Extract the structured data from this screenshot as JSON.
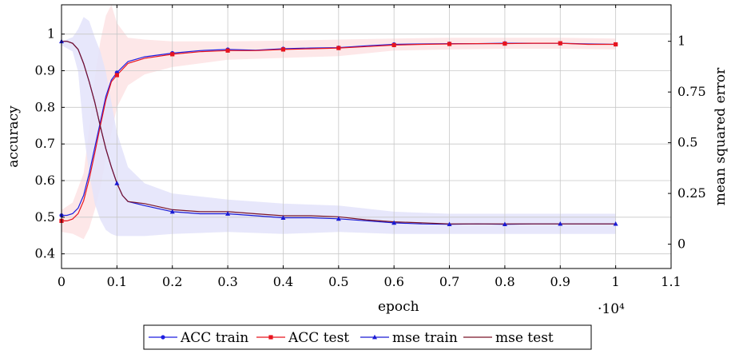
{
  "chart_data": {
    "type": "line",
    "xlabel": "epoch",
    "ylabel": "accuracy",
    "y2label": "mean squared error",
    "x_multiplier_label": "·10⁴",
    "xlim": [
      0,
      1.1
    ],
    "ylim": [
      0.36,
      1.08
    ],
    "y2lim": [
      -0.12,
      1.18
    ],
    "x_ticks": [
      0,
      0.1,
      0.2,
      0.3,
      0.4,
      0.5,
      0.6,
      0.7,
      0.8,
      0.9,
      1,
      1.1
    ],
    "x_tick_labels": [
      "0",
      "0.1",
      "0.2",
      "0.3",
      "0.4",
      "0.5",
      "0.6",
      "0.7",
      "0.8",
      "0.9",
      "1",
      "1.1"
    ],
    "y_ticks": [
      0.4,
      0.5,
      0.6,
      0.7,
      0.8,
      0.9,
      1
    ],
    "y_tick_labels": [
      "0.4",
      "0.5",
      "0.6",
      "0.7",
      "0.8",
      "0.9",
      "1"
    ],
    "y2_ticks": [
      0,
      0.25,
      0.5,
      0.75,
      1
    ],
    "y2_tick_labels": [
      "0",
      "0.25",
      "0.5",
      "0.75",
      "1"
    ],
    "grid": true,
    "legend_position": "bottom-center",
    "series": [
      {
        "name": "ACC train",
        "axis": "left",
        "color": "#1f1fe0",
        "marker": "circle",
        "x": [
          0,
          0.01,
          0.02,
          0.03,
          0.04,
          0.05,
          0.06,
          0.07,
          0.08,
          0.09,
          0.1,
          0.12,
          0.15,
          0.2,
          0.25,
          0.3,
          0.35,
          0.4,
          0.45,
          0.5,
          0.55,
          0.6,
          0.65,
          0.7,
          0.75,
          0.8,
          0.85,
          0.9,
          0.95,
          1.0
        ],
        "values": [
          0.505,
          0.505,
          0.51,
          0.525,
          0.56,
          0.62,
          0.69,
          0.76,
          0.83,
          0.875,
          0.895,
          0.925,
          0.938,
          0.948,
          0.955,
          0.958,
          0.956,
          0.96,
          0.962,
          0.963,
          0.968,
          0.972,
          0.973,
          0.974,
          0.974,
          0.975,
          0.975,
          0.975,
          0.973,
          0.972
        ]
      },
      {
        "name": "ACC test",
        "axis": "left",
        "color": "#e8141e",
        "marker": "square",
        "x": [
          0,
          0.01,
          0.02,
          0.03,
          0.04,
          0.05,
          0.06,
          0.07,
          0.08,
          0.09,
          0.1,
          0.12,
          0.15,
          0.2,
          0.25,
          0.3,
          0.35,
          0.4,
          0.45,
          0.5,
          0.55,
          0.6,
          0.65,
          0.7,
          0.75,
          0.8,
          0.85,
          0.9,
          0.95,
          1.0
        ],
        "values": [
          0.49,
          0.49,
          0.495,
          0.51,
          0.545,
          0.605,
          0.675,
          0.75,
          0.82,
          0.87,
          0.888,
          0.92,
          0.934,
          0.945,
          0.952,
          0.955,
          0.955,
          0.958,
          0.96,
          0.962,
          0.966,
          0.97,
          0.972,
          0.973,
          0.974,
          0.974,
          0.975,
          0.975,
          0.972,
          0.972
        ]
      },
      {
        "name": "mse train",
        "axis": "right",
        "color": "#1a1ad4",
        "marker": "triangle",
        "x": [
          0,
          0.01,
          0.02,
          0.03,
          0.04,
          0.05,
          0.06,
          0.07,
          0.08,
          0.09,
          0.1,
          0.11,
          0.12,
          0.15,
          0.2,
          0.25,
          0.3,
          0.35,
          0.4,
          0.45,
          0.5,
          0.55,
          0.6,
          0.65,
          0.7,
          0.75,
          0.8,
          0.85,
          0.9,
          0.95,
          1.0
        ],
        "values": [
          1.0,
          1.0,
          0.99,
          0.96,
          0.89,
          0.8,
          0.7,
          0.58,
          0.47,
          0.38,
          0.3,
          0.24,
          0.21,
          0.19,
          0.16,
          0.15,
          0.15,
          0.14,
          0.13,
          0.13,
          0.125,
          0.115,
          0.105,
          0.1,
          0.098,
          0.1,
          0.098,
          0.1,
          0.1,
          0.1,
          0.1
        ]
      },
      {
        "name": "mse test",
        "axis": "right",
        "color": "#7a1428",
        "marker": "none",
        "x": [
          0,
          0.01,
          0.02,
          0.03,
          0.04,
          0.05,
          0.06,
          0.07,
          0.08,
          0.09,
          0.1,
          0.11,
          0.12,
          0.15,
          0.2,
          0.25,
          0.3,
          0.35,
          0.4,
          0.45,
          0.5,
          0.55,
          0.6,
          0.65,
          0.7,
          0.75,
          0.8,
          0.85,
          0.9,
          0.95,
          1.0
        ],
        "values": [
          1.0,
          1.0,
          0.99,
          0.96,
          0.89,
          0.8,
          0.7,
          0.58,
          0.47,
          0.38,
          0.3,
          0.24,
          0.21,
          0.2,
          0.17,
          0.16,
          0.16,
          0.15,
          0.14,
          0.14,
          0.135,
          0.12,
          0.11,
          0.105,
          0.1,
          0.1,
          0.1,
          0.1,
          0.1,
          0.1,
          0.1
        ]
      }
    ],
    "bands": [
      {
        "color": "#fde3e4",
        "axis": "left",
        "x": [
          0,
          0.02,
          0.04,
          0.05,
          0.06,
          0.07,
          0.08,
          0.09,
          0.1,
          0.12,
          0.15,
          0.2,
          0.3,
          0.4,
          0.5,
          0.6,
          0.7,
          0.8,
          0.9,
          1.0
        ],
        "upper": [
          0.52,
          0.54,
          0.62,
          0.74,
          0.88,
          0.98,
          1.05,
          1.08,
          1.03,
          0.99,
          0.985,
          0.98,
          0.98,
          0.982,
          0.985,
          0.988,
          0.99,
          0.99,
          0.99,
          0.988
        ],
        "lower": [
          0.46,
          0.455,
          0.44,
          0.47,
          0.52,
          0.58,
          0.66,
          0.73,
          0.8,
          0.86,
          0.89,
          0.91,
          0.93,
          0.935,
          0.94,
          0.955,
          0.958,
          0.96,
          0.96,
          0.958
        ]
      },
      {
        "color": "#e3e3fa",
        "axis": "right",
        "x": [
          0,
          0.02,
          0.03,
          0.04,
          0.05,
          0.06,
          0.07,
          0.08,
          0.09,
          0.1,
          0.12,
          0.15,
          0.2,
          0.3,
          0.4,
          0.5,
          0.6,
          0.7,
          0.8,
          0.9,
          1.0
        ],
        "upper": [
          1.0,
          1.02,
          1.06,
          1.12,
          1.1,
          1.02,
          0.95,
          0.85,
          0.7,
          0.55,
          0.38,
          0.3,
          0.25,
          0.22,
          0.2,
          0.19,
          0.16,
          0.15,
          0.15,
          0.15,
          0.15
        ],
        "lower": [
          0.98,
          0.95,
          0.85,
          0.55,
          0.35,
          0.2,
          0.12,
          0.07,
          0.05,
          0.04,
          0.04,
          0.04,
          0.05,
          0.06,
          0.05,
          0.06,
          0.05,
          0.05,
          0.05,
          0.05,
          0.05
        ]
      }
    ]
  }
}
